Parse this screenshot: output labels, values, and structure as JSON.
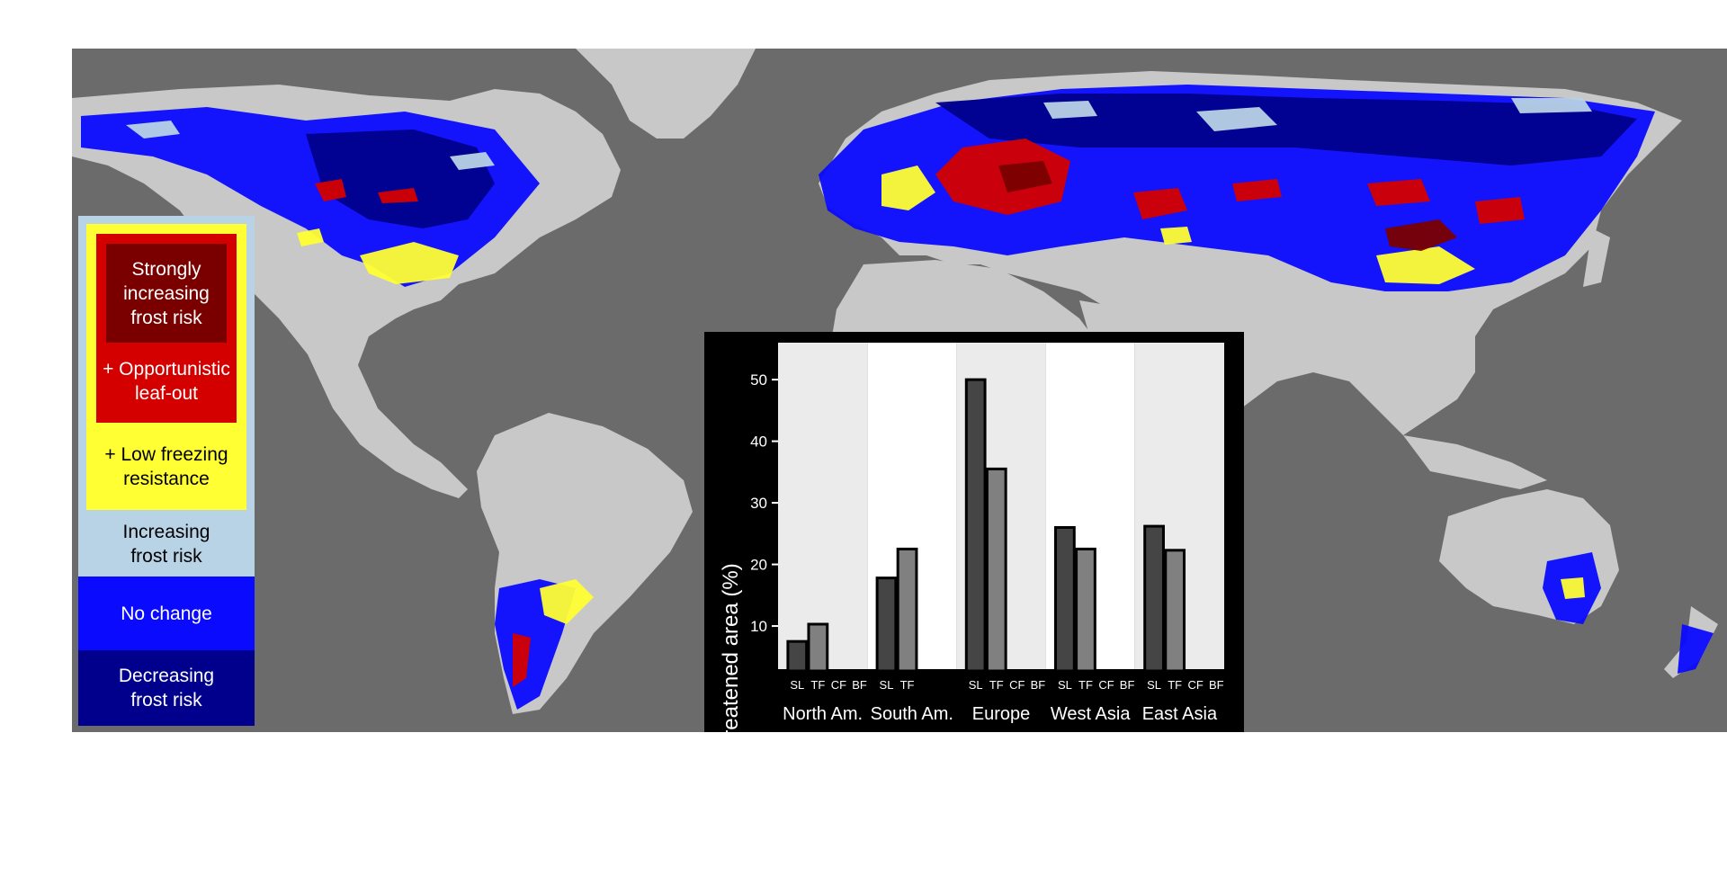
{
  "legend": {
    "items": [
      {
        "id": "strong",
        "label": "Strongly\nincreasing\nfrost risk",
        "color": "#7a0000"
      },
      {
        "id": "opportunistic",
        "label": "+ Opportunistic\nleaf-out",
        "color": "#d40000"
      },
      {
        "id": "low_freezing",
        "label": "+ Low freezing\nresistance",
        "color": "#ffff33"
      },
      {
        "id": "increasing",
        "label": "Increasing\nfrost risk",
        "color": "#b8d2e6"
      },
      {
        "id": "no_change",
        "label": "No change",
        "color": "#0a0aff"
      },
      {
        "id": "decreasing",
        "label": "Decreasing\nfrost risk",
        "color": "#00008c"
      }
    ]
  },
  "colors": {
    "ocean": "#6b6b6b",
    "land": "#c8c8c8",
    "no_change": "#0a0aff",
    "decreasing": "#00008c",
    "increasing": "#b8d2e6",
    "low_freezing": "#ffff33",
    "opportunistic": "#d40000",
    "strong": "#7a0000",
    "bar_SL": "#454545",
    "bar_TF": "#808080"
  },
  "chart_data": {
    "type": "bar",
    "ylabel": "Threatened area (%)",
    "yticks": [
      10,
      20,
      30,
      40,
      50
    ],
    "ylim": [
      3,
      56
    ],
    "subcategories": [
      "SL",
      "TF",
      "CF",
      "BF"
    ],
    "regions": [
      {
        "name": "North Am.",
        "labels": [
          "SL",
          "TF",
          "CF",
          "BF"
        ],
        "values": [
          7.5,
          10.3,
          null,
          null
        ]
      },
      {
        "name": "South Am.",
        "labels": [
          "SL",
          "TF"
        ],
        "values": [
          17.8,
          22.5,
          null,
          null
        ]
      },
      {
        "name": "Europe",
        "labels": [
          "SL",
          "TF",
          "CF",
          "BF"
        ],
        "values": [
          50,
          35.5,
          null,
          null
        ]
      },
      {
        "name": "West Asia",
        "labels": [
          "SL",
          "TF",
          "CF",
          "BF"
        ],
        "values": [
          26,
          22.5,
          null,
          null
        ]
      },
      {
        "name": "East Asia",
        "labels": [
          "SL",
          "TF",
          "CF",
          "BF"
        ],
        "values": [
          26.2,
          22.3,
          null,
          null
        ]
      }
    ]
  }
}
